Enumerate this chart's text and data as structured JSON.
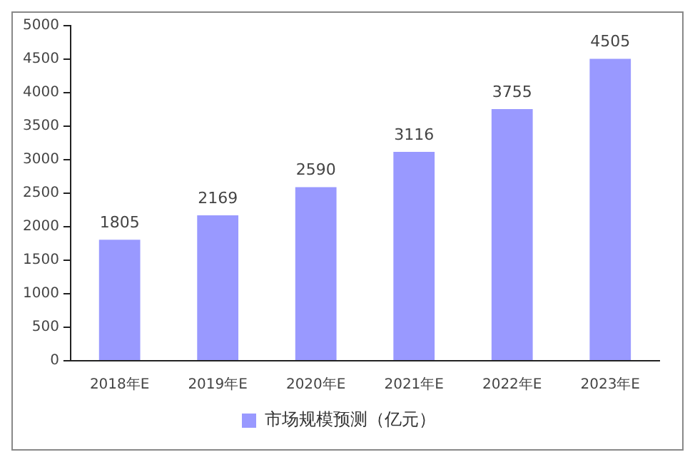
{
  "chart_data": {
    "type": "bar",
    "categories": [
      "2018年E",
      "2019年E",
      "2020年E",
      "2021年E",
      "2022年E",
      "2023年E"
    ],
    "series": [
      {
        "name": "市场规模预测（亿元）",
        "color": "#9999ff",
        "values": [
          1805,
          2169,
          2590,
          3116,
          3755,
          4505
        ]
      }
    ],
    "ylim": [
      0,
      5000
    ],
    "yticks": [
      0,
      500,
      1000,
      1500,
      2000,
      2500,
      3000,
      3500,
      4000,
      4500,
      5000
    ],
    "grid": false,
    "legend": "bottom",
    "data_labels": true
  }
}
